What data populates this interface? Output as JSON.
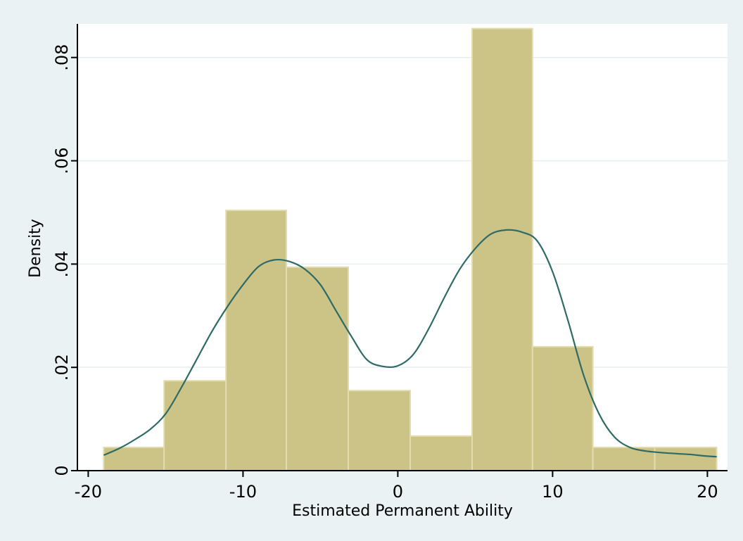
{
  "chart_data": {
    "type": "bar",
    "subtype": "histogram_with_kernel_density",
    "xlabel": "Estimated Permanent Ability",
    "ylabel": "Density",
    "xlim": [
      -20.7,
      21.3
    ],
    "ylim": [
      0,
      0.0865
    ],
    "x_ticks": [
      -20,
      -10,
      0,
      10,
      20
    ],
    "x_tick_labels": [
      "-20",
      "-10",
      "0",
      "10",
      "20"
    ],
    "y_ticks": [
      0,
      0.02,
      0.04,
      0.06,
      0.08
    ],
    "y_tick_labels": [
      "0",
      ".02",
      ".04",
      ".06",
      ".08"
    ],
    "grid": true,
    "colors": {
      "background": "#eaf2f3",
      "plot_background": "#ffffff",
      "gridline": "#e6eef0",
      "bar_fill": "#ccc386",
      "bar_edge": "#e2dcae",
      "density_line": "#2e6b66"
    },
    "bins": [
      {
        "x0": -19.0,
        "x1": -15.1,
        "density": 0.0045
      },
      {
        "x0": -15.1,
        "x1": -11.1,
        "density": 0.0174
      },
      {
        "x0": -11.1,
        "x1": -7.2,
        "density": 0.0504
      },
      {
        "x0": -7.2,
        "x1": -3.2,
        "density": 0.0394
      },
      {
        "x0": -3.2,
        "x1": 0.8,
        "density": 0.0155
      },
      {
        "x0": 0.8,
        "x1": 4.8,
        "density": 0.0067
      },
      {
        "x0": 4.8,
        "x1": 8.7,
        "density": 0.0856
      },
      {
        "x0": 8.7,
        "x1": 12.6,
        "density": 0.024
      },
      {
        "x0": 12.6,
        "x1": 16.6,
        "density": 0.0045
      },
      {
        "x0": 16.6,
        "x1": 20.6,
        "density": 0.0045
      }
    ],
    "density_curve": {
      "x": [
        -19.0,
        -18.0,
        -17.0,
        -16.0,
        -15.0,
        -14.0,
        -13.0,
        -12.0,
        -11.0,
        -10.0,
        -9.0,
        -8.0,
        -7.0,
        -6.0,
        -5.0,
        -4.0,
        -3.0,
        -2.0,
        -1.0,
        0.0,
        1.0,
        2.0,
        3.0,
        4.0,
        5.0,
        6.0,
        7.0,
        8.0,
        9.0,
        10.0,
        11.0,
        12.0,
        13.0,
        14.0,
        15.0,
        16.0,
        17.0,
        18.0,
        19.0,
        20.0,
        20.6
      ],
      "y": [
        0.003,
        0.0043,
        0.006,
        0.008,
        0.011,
        0.016,
        0.0215,
        0.027,
        0.0318,
        0.036,
        0.0395,
        0.0408,
        0.0405,
        0.039,
        0.036,
        0.031,
        0.026,
        0.0215,
        0.0202,
        0.0203,
        0.0225,
        0.0275,
        0.0335,
        0.039,
        0.043,
        0.0458,
        0.0466,
        0.0462,
        0.0445,
        0.0385,
        0.029,
        0.0185,
        0.011,
        0.0065,
        0.0045,
        0.0038,
        0.0035,
        0.0033,
        0.0031,
        0.0028,
        0.0027
      ]
    }
  }
}
